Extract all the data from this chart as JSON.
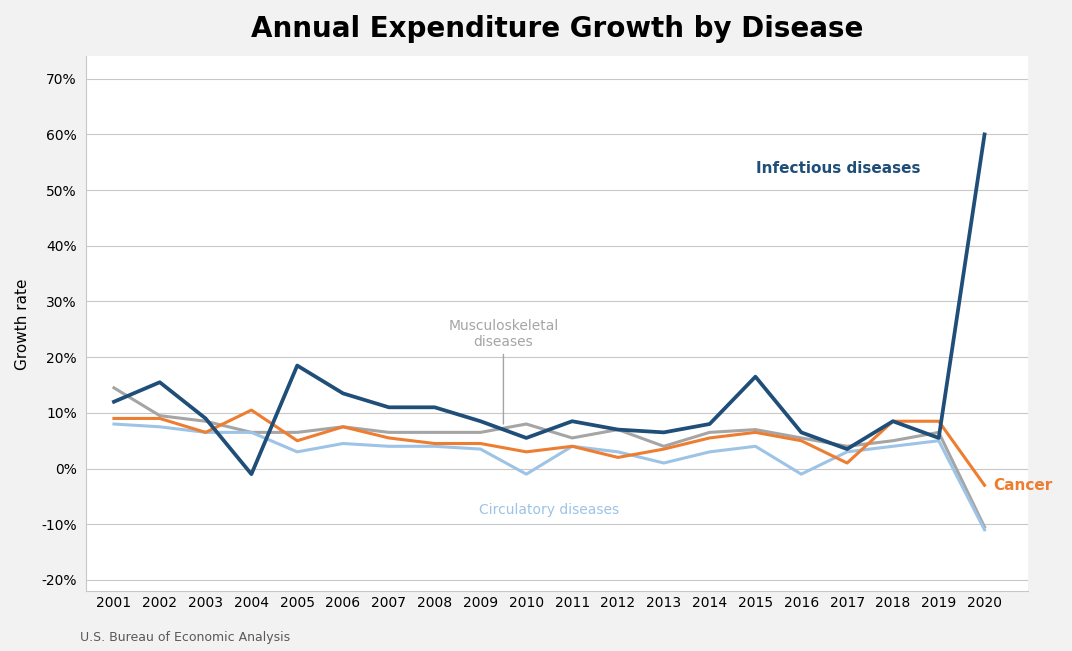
{
  "title": "Annual Expenditure Growth by Disease",
  "xlabel": "",
  "ylabel": "Growth rate",
  "source": "U.S. Bureau of Economic Analysis",
  "years": [
    2001,
    2002,
    2003,
    2004,
    2005,
    2006,
    2007,
    2008,
    2009,
    2010,
    2011,
    2012,
    2013,
    2014,
    2015,
    2016,
    2017,
    2018,
    2019,
    2020
  ],
  "infectious_diseases": [
    0.12,
    0.155,
    0.09,
    -0.01,
    0.185,
    0.135,
    0.11,
    0.11,
    0.085,
    0.055,
    0.085,
    0.07,
    0.065,
    0.08,
    0.165,
    0.065,
    0.035,
    0.085,
    0.055,
    0.6
  ],
  "cancer": [
    0.09,
    0.09,
    0.065,
    0.105,
    0.05,
    0.075,
    0.055,
    0.045,
    0.045,
    0.03,
    0.04,
    0.02,
    0.035,
    0.055,
    0.065,
    0.05,
    0.01,
    0.085,
    0.085,
    -0.03
  ],
  "musculoskeletal": [
    0.145,
    0.095,
    0.085,
    0.065,
    0.065,
    0.075,
    0.065,
    0.065,
    0.065,
    0.08,
    0.055,
    0.07,
    0.04,
    0.065,
    0.07,
    0.055,
    0.04,
    0.05,
    0.065,
    -0.105
  ],
  "circulatory": [
    0.08,
    0.075,
    0.065,
    0.065,
    0.03,
    0.045,
    0.04,
    0.04,
    0.035,
    -0.01,
    0.04,
    0.03,
    0.01,
    0.03,
    0.04,
    -0.01,
    0.03,
    0.04,
    0.05,
    -0.11
  ],
  "infectious_color": "#1F4E79",
  "cancer_color": "#ED7D31",
  "musculoskeletal_color": "#A5A5A5",
  "circulatory_color": "#9DC3E6",
  "ylim": [
    -0.22,
    0.74
  ],
  "yticks": [
    -0.2,
    -0.1,
    0.0,
    0.1,
    0.2,
    0.3,
    0.4,
    0.5,
    0.6,
    0.7
  ],
  "figure_facecolor": "#F2F2F2",
  "plot_facecolor": "#FFFFFF",
  "title_fontsize": 20,
  "label_fontsize": 11,
  "tick_fontsize": 10,
  "linewidth": 2.2,
  "grid_color": "#C8C8C8"
}
